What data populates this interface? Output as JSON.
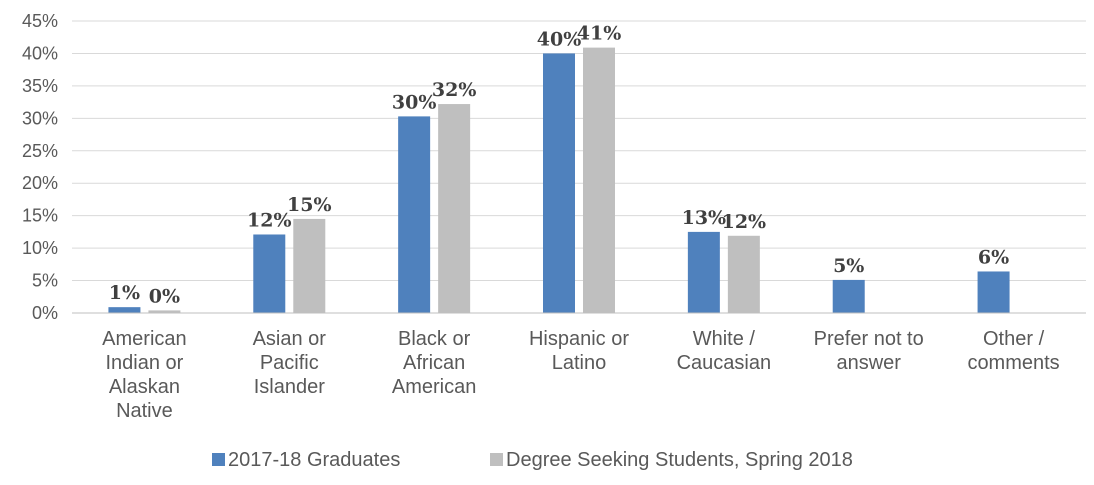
{
  "chart_data": {
    "type": "bar",
    "categories": [
      [
        "American",
        "Indian or",
        "Alaskan",
        "Native"
      ],
      [
        "Asian or",
        "Pacific",
        "Islander"
      ],
      [
        "Black or",
        "African",
        "American"
      ],
      [
        "Hispanic or",
        "Latino"
      ],
      [
        "White /",
        "Caucasian"
      ],
      [
        "Prefer not to",
        "answer"
      ],
      [
        "Other /",
        "comments"
      ]
    ],
    "series": [
      {
        "name": "2017-18 Graduates",
        "color": "#4f81bd",
        "values": [
          0.9,
          12.1,
          30.3,
          40.0,
          12.5,
          5.1,
          6.4
        ],
        "labels": [
          "1%",
          "12%",
          "30%",
          "40%",
          "13%",
          "5%",
          "6%"
        ]
      },
      {
        "name": "Degree Seeking Students, Spring 2018",
        "color": "#bfbfbf",
        "values": [
          0.4,
          14.5,
          32.2,
          40.9,
          11.9,
          null,
          null
        ],
        "labels": [
          "0%",
          "15%",
          "32%",
          "41%",
          "12%",
          "",
          ""
        ]
      }
    ],
    "yticks": [
      "0%",
      "5%",
      "10%",
      "15%",
      "20%",
      "25%",
      "30%",
      "35%",
      "40%",
      "45%"
    ],
    "ylim": [
      0,
      45
    ],
    "grid": true,
    "legend_position": "bottom"
  }
}
